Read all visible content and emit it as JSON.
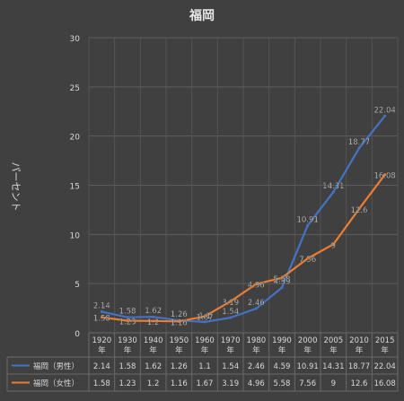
{
  "chart_data": {
    "type": "line",
    "title": "福岡",
    "ylabel": "パーセント",
    "ylim": [
      0,
      30
    ],
    "yticks": [
      0,
      5,
      10,
      15,
      20,
      25,
      30
    ],
    "grid": true,
    "legend": "table-below",
    "categories": [
      "1920\n年",
      "1930\n年",
      "1940\n年",
      "1950\n年",
      "1960\n年",
      "1970\n年",
      "1980\n年",
      "1990\n年",
      "2000\n年",
      "2005\n年",
      "2010\n年",
      "2015\n年"
    ],
    "series": [
      {
        "name": "福岡（男性）",
        "color": "#4472c4",
        "values": [
          2.14,
          1.58,
          1.62,
          1.26,
          1.1,
          1.54,
          2.46,
          4.59,
          10.91,
          14.31,
          18.77,
          22.04
        ],
        "labels": [
          "2.14",
          "1.58",
          "1.62",
          "1.26",
          "1.1",
          "1.54",
          "2.46",
          "4.59",
          "10.91",
          "14.31",
          "18.77",
          "22.04"
        ]
      },
      {
        "name": "福岡（女性）",
        "color": "#ed7d31",
        "values": [
          1.58,
          1.23,
          1.2,
          1.16,
          1.67,
          3.19,
          4.96,
          5.58,
          7.56,
          9,
          12.6,
          16.08
        ],
        "labels": [
          "1.58",
          "1.23",
          "1.2",
          "1.16",
          "1.67",
          "3.19",
          "4.96",
          "5.58",
          "7.56",
          "9",
          "12.6",
          "16.08"
        ]
      }
    ]
  }
}
